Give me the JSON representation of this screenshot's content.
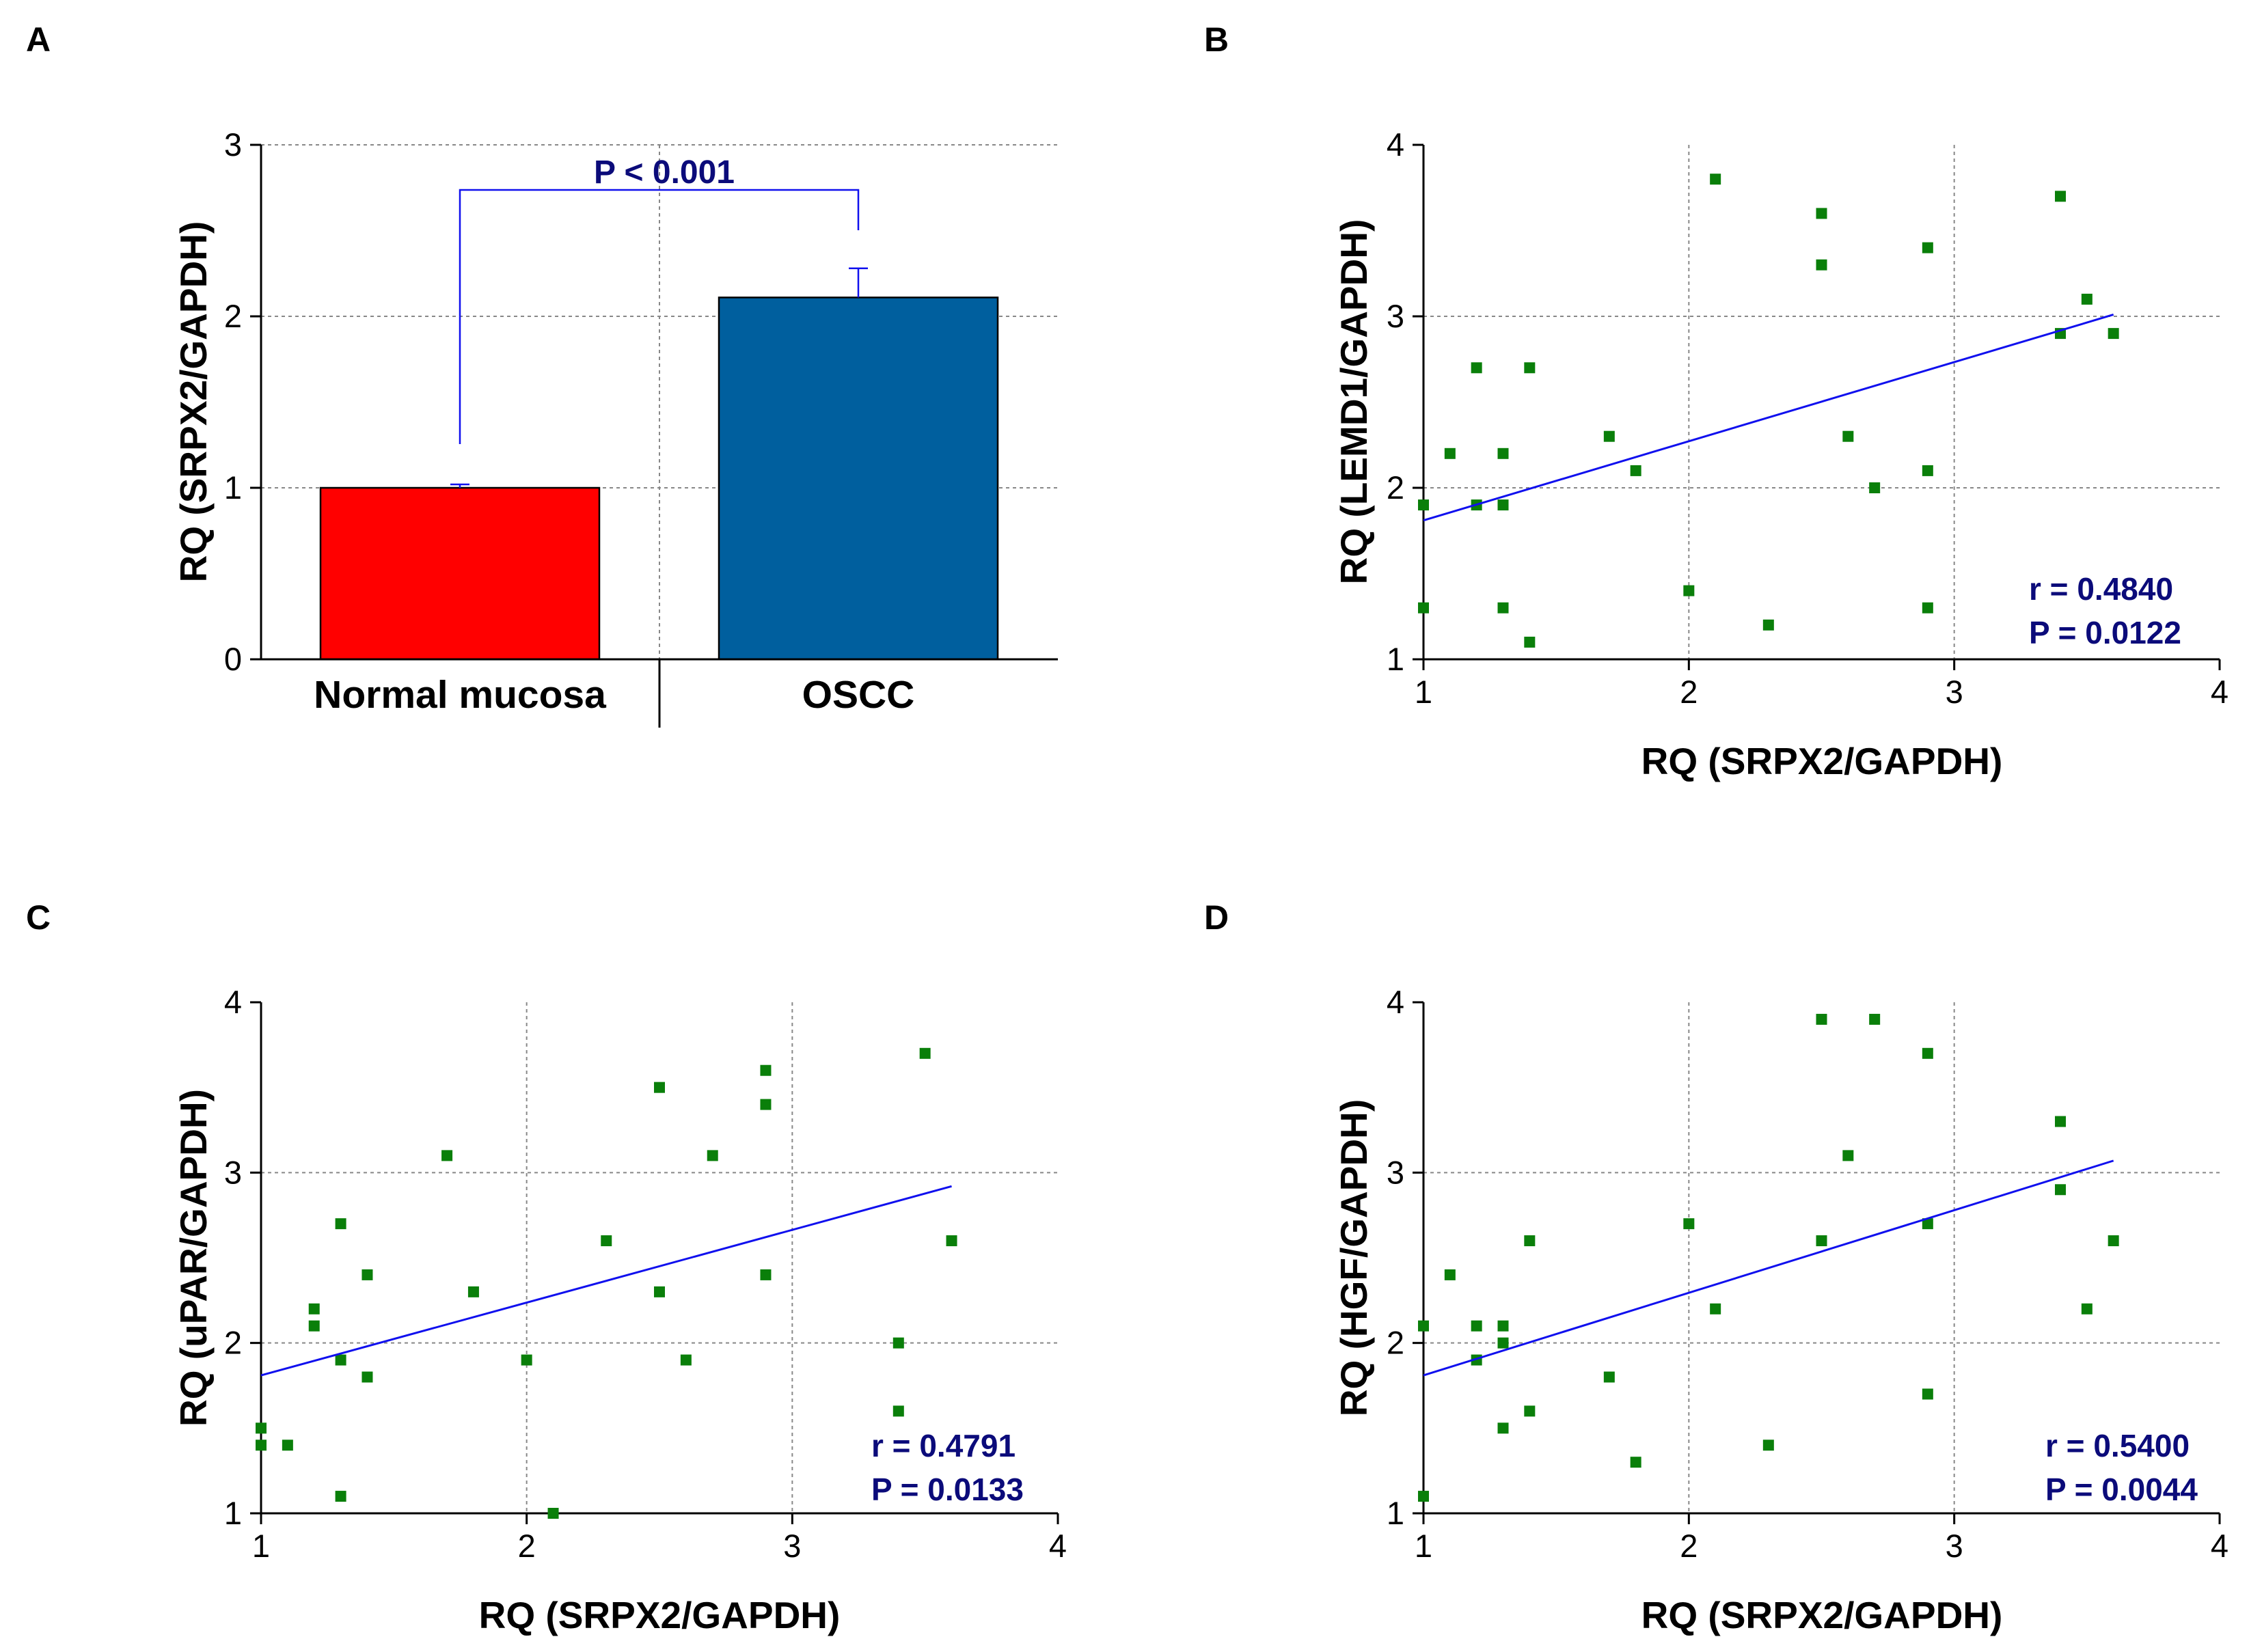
{
  "figure": {
    "colors": {
      "normal_bar": "#ff0000",
      "oscc_bar": "#005f9e",
      "points": "#0a7f0a",
      "fit_line": "#1010ee",
      "stat_text": "#0b0b7a"
    }
  },
  "chart_data": [
    {
      "panel": "A",
      "type": "bar",
      "categories": [
        "Normal mucosa",
        "OSCC"
      ],
      "values": [
        1.0,
        2.11
      ],
      "errors": [
        0.02,
        0.17
      ],
      "ylabel": "RQ (SRPX2/GAPDH)",
      "xlabel": "",
      "ylim": [
        0,
        3
      ],
      "yticks": [
        "0",
        "1",
        "2",
        "3"
      ],
      "significance": "P < 0.001",
      "grid": true
    },
    {
      "panel": "B",
      "type": "scatter",
      "xlabel": "RQ (SRPX2/GAPDH)",
      "ylabel": "RQ (LEMD1/GAPDH)",
      "xlim": [
        1,
        4
      ],
      "ylim": [
        1,
        4
      ],
      "xticks": [
        "1",
        "2",
        "3",
        "4"
      ],
      "yticks": [
        "1",
        "2",
        "3",
        "4"
      ],
      "points": [
        [
          1.0,
          1.9
        ],
        [
          1.0,
          1.3
        ],
        [
          1.1,
          2.2
        ],
        [
          1.2,
          2.7
        ],
        [
          1.2,
          1.9
        ],
        [
          1.3,
          2.2
        ],
        [
          1.3,
          1.9
        ],
        [
          1.3,
          1.3
        ],
        [
          1.4,
          2.7
        ],
        [
          1.4,
          1.1
        ],
        [
          1.7,
          2.3
        ],
        [
          1.8,
          2.1
        ],
        [
          2.0,
          1.4
        ],
        [
          2.1,
          3.8
        ],
        [
          2.3,
          1.2
        ],
        [
          2.5,
          3.6
        ],
        [
          2.5,
          3.3
        ],
        [
          2.6,
          2.3
        ],
        [
          2.7,
          2.0
        ],
        [
          2.9,
          3.4
        ],
        [
          2.9,
          2.1
        ],
        [
          2.9,
          1.3
        ],
        [
          3.4,
          3.7
        ],
        [
          3.4,
          2.9
        ],
        [
          3.5,
          3.1
        ],
        [
          3.6,
          2.9
        ]
      ],
      "fit_line": {
        "x": [
          1.0,
          3.6
        ],
        "y": [
          1.81,
          3.01
        ]
      },
      "r_text": "r = 0.4840",
      "p_text": "P = 0.0122",
      "grid": true
    },
    {
      "panel": "C",
      "type": "scatter",
      "xlabel": "RQ (SRPX2/GAPDH)",
      "ylabel": "RQ (uPAR/GAPDH)",
      "xlim": [
        1,
        4
      ],
      "ylim": [
        1,
        4
      ],
      "xticks": [
        "1",
        "2",
        "3",
        "4"
      ],
      "yticks": [
        "1",
        "2",
        "3",
        "4"
      ],
      "points": [
        [
          1.0,
          1.5
        ],
        [
          1.0,
          1.4
        ],
        [
          1.1,
          1.4
        ],
        [
          1.2,
          2.2
        ],
        [
          1.2,
          2.1
        ],
        [
          1.3,
          2.7
        ],
        [
          1.3,
          1.9
        ],
        [
          1.3,
          1.1
        ],
        [
          1.4,
          2.4
        ],
        [
          1.4,
          1.8
        ],
        [
          1.7,
          3.1
        ],
        [
          1.8,
          2.3
        ],
        [
          2.0,
          1.9
        ],
        [
          2.1,
          1.0
        ],
        [
          2.3,
          2.6
        ],
        [
          2.5,
          3.5
        ],
        [
          2.5,
          2.3
        ],
        [
          2.6,
          1.9
        ],
        [
          2.7,
          3.1
        ],
        [
          2.9,
          3.6
        ],
        [
          2.9,
          3.4
        ],
        [
          2.9,
          2.4
        ],
        [
          3.4,
          2.0
        ],
        [
          3.4,
          1.6
        ],
        [
          3.5,
          3.7
        ],
        [
          3.6,
          2.6
        ]
      ],
      "fit_line": {
        "x": [
          1.0,
          3.6
        ],
        "y": [
          1.81,
          2.92
        ]
      },
      "r_text": "r = 0.4791",
      "p_text": "P = 0.0133",
      "grid": true
    },
    {
      "panel": "D",
      "type": "scatter",
      "xlabel": "RQ (SRPX2/GAPDH)",
      "ylabel": "RQ (HGF/GAPDH)",
      "xlim": [
        1,
        4
      ],
      "ylim": [
        1,
        4
      ],
      "xticks": [
        "1",
        "2",
        "3",
        "4"
      ],
      "yticks": [
        "1",
        "2",
        "3",
        "4"
      ],
      "points": [
        [
          1.0,
          2.1
        ],
        [
          1.0,
          1.1
        ],
        [
          1.1,
          2.4
        ],
        [
          1.2,
          2.1
        ],
        [
          1.2,
          1.9
        ],
        [
          1.3,
          2.1
        ],
        [
          1.3,
          2.0
        ],
        [
          1.3,
          1.5
        ],
        [
          1.4,
          2.6
        ],
        [
          1.4,
          1.6
        ],
        [
          1.7,
          1.8
        ],
        [
          1.8,
          1.3
        ],
        [
          2.0,
          2.7
        ],
        [
          2.1,
          2.2
        ],
        [
          2.3,
          1.4
        ],
        [
          2.5,
          3.9
        ],
        [
          2.5,
          2.6
        ],
        [
          2.6,
          3.1
        ],
        [
          2.7,
          3.9
        ],
        [
          2.9,
          3.7
        ],
        [
          2.9,
          2.7
        ],
        [
          2.9,
          1.7
        ],
        [
          3.4,
          3.3
        ],
        [
          3.4,
          2.9
        ],
        [
          3.5,
          2.2
        ],
        [
          3.6,
          2.6
        ]
      ],
      "fit_line": {
        "x": [
          1.0,
          3.6
        ],
        "y": [
          1.81,
          3.07
        ]
      },
      "r_text": "r = 0.5400",
      "p_text": "P = 0.0044",
      "grid": true
    }
  ]
}
